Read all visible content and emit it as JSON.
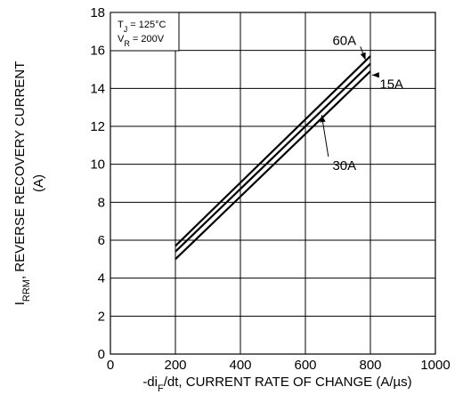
{
  "chart_data": {
    "type": "line",
    "title": "",
    "xlabel": {
      "prefix": "-di",
      "sub": "F",
      "rest": "/dt, CURRENT RATE OF CHANGE (A/µs)"
    },
    "ylabel": {
      "main": "I",
      "sub": "RRM",
      "rest": ", REVERSE RECOVERY CURRENT",
      "unit": "(A)"
    },
    "xlim": [
      0,
      1000
    ],
    "ylim": [
      0,
      18
    ],
    "xticks": [
      "0",
      "200",
      "400",
      "600",
      "800",
      "1000"
    ],
    "yticks": [
      "0",
      "2",
      "4",
      "6",
      "8",
      "10",
      "12",
      "14",
      "16",
      "18"
    ],
    "grid": true,
    "conditions": {
      "tj": {
        "main": "T",
        "sub": "J",
        "rest": " = 125°C"
      },
      "vr": {
        "main": "V",
        "sub": "R",
        "rest": " = 200V"
      }
    },
    "series": [
      {
        "name": "60A",
        "x": [
          200,
          800
        ],
        "y": [
          5.7,
          15.7
        ]
      },
      {
        "name": "30A",
        "x": [
          200,
          800
        ],
        "y": [
          5.4,
          15.3
        ]
      },
      {
        "name": "15A",
        "x": [
          200,
          800
        ],
        "y": [
          5.0,
          14.9
        ]
      }
    ],
    "annotations": [
      {
        "label": "60A",
        "series": 0,
        "text_at": [
          720,
          16.3
        ],
        "arrow_to": [
          785,
          15.5
        ]
      },
      {
        "label": "15A",
        "series": 2,
        "text_at": [
          865,
          14.0
        ],
        "arrow_to": [
          805,
          14.7
        ]
      },
      {
        "label": "30A",
        "series": 1,
        "text_at": [
          720,
          9.7
        ],
        "arrow_to": [
          650,
          12.6
        ]
      }
    ]
  }
}
